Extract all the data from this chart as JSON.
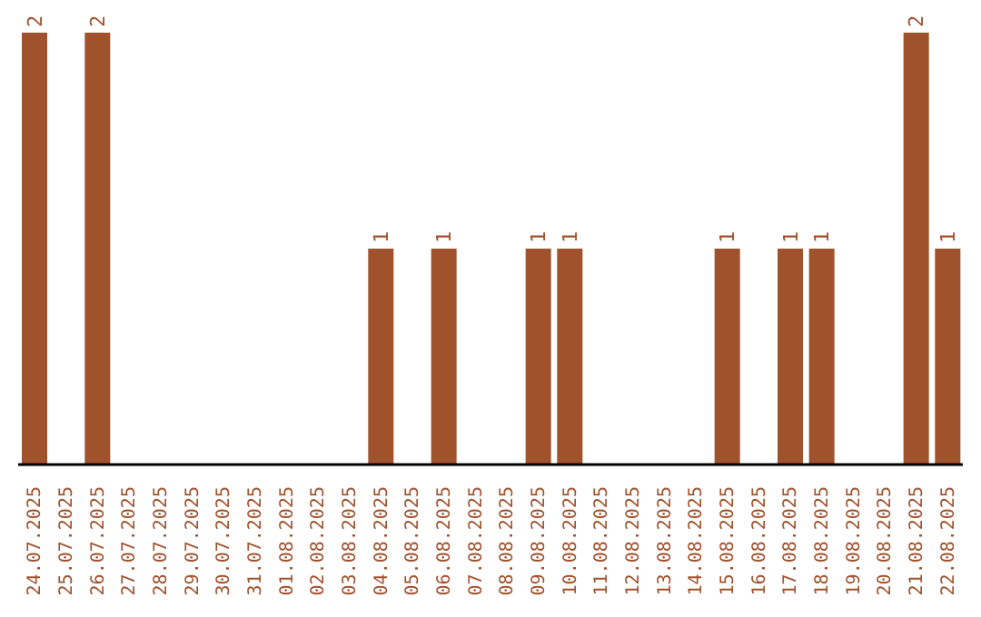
{
  "chart_data": {
    "type": "bar",
    "categories": [
      "24.07.2025",
      "25.07.2025",
      "26.07.2025",
      "27.07.2025",
      "28.07.2025",
      "29.07.2025",
      "30.07.2025",
      "31.07.2025",
      "01.08.2025",
      "02.08.2025",
      "03.08.2025",
      "04.08.2025",
      "05.08.2025",
      "06.08.2025",
      "07.08.2025",
      "08.08.2025",
      "09.08.2025",
      "10.08.2025",
      "11.08.2025",
      "12.08.2025",
      "13.08.2025",
      "14.08.2025",
      "15.08.2025",
      "16.08.2025",
      "17.08.2025",
      "18.08.2025",
      "19.08.2025",
      "20.08.2025",
      "21.08.2025",
      "22.08.2025"
    ],
    "values": [
      2,
      0,
      2,
      0,
      0,
      0,
      0,
      0,
      0,
      0,
      0,
      1,
      0,
      1,
      0,
      0,
      1,
      1,
      0,
      0,
      0,
      0,
      1,
      0,
      1,
      1,
      0,
      0,
      2,
      1
    ],
    "value_labels": [
      "2",
      null,
      "2",
      null,
      null,
      null,
      null,
      null,
      null,
      null,
      null,
      "1",
      null,
      "1",
      null,
      null,
      "1",
      "1",
      null,
      null,
      null,
      null,
      "1",
      null,
      "1",
      "1",
      null,
      null,
      "2",
      "1"
    ],
    "color": "#a0522d",
    "grid": false,
    "legend": false
  }
}
